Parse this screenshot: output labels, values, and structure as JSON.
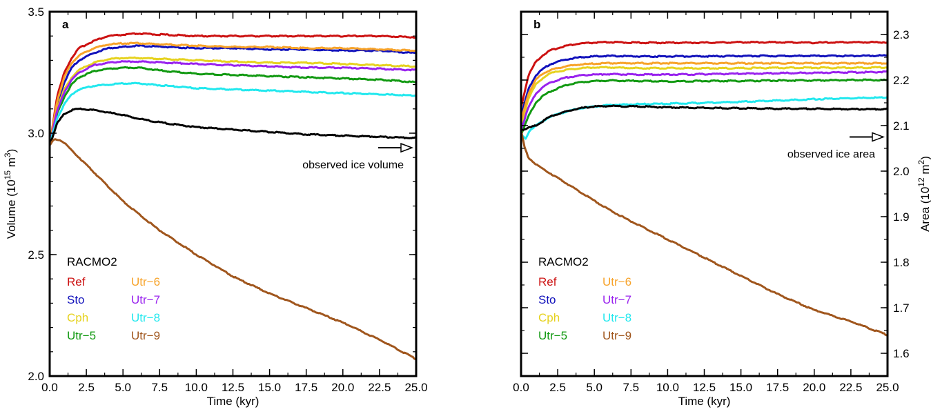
{
  "chart_data": [
    {
      "type": "line",
      "panel_letter": "a",
      "xlabel": "Time (kyr)",
      "ylabel_main": "Volume (10",
      "ylabel_exp": "15",
      "ylabel_unit": " m",
      "ylabel_unit_exp": "3",
      "ylabel_close": ")",
      "xlim": [
        0,
        25
      ],
      "ylim": [
        2.0,
        3.5
      ],
      "xticks": [
        "0.0",
        "2.5",
        "5.0",
        "7.5",
        "10.0",
        "12.5",
        "15.0",
        "17.5",
        "20.0",
        "22.5",
        "25.0"
      ],
      "yticks": [
        {
          "value": 2.0,
          "label": "2.0"
        },
        {
          "value": 2.5,
          "label": "2.5"
        },
        {
          "value": 3.0,
          "label": "3.0"
        },
        {
          "value": 3.5,
          "label": "3.5"
        }
      ],
      "y_axis_side": "left",
      "grid": false,
      "legend_title": "RACMO2",
      "annotation": {
        "text": "observed ice volume",
        "value": 2.94
      },
      "series": [
        {
          "name": "Ref",
          "color": "#cc1111",
          "x": [
            0,
            0.5,
            1,
            1.5,
            2,
            3,
            4,
            5,
            6,
            8,
            10,
            12.5,
            15,
            17.5,
            20,
            22.5,
            25
          ],
          "y": [
            2.95,
            3.15,
            3.25,
            3.31,
            3.35,
            3.38,
            3.4,
            3.405,
            3.41,
            3.405,
            3.4,
            3.4,
            3.4,
            3.4,
            3.4,
            3.4,
            3.395
          ]
        },
        {
          "name": "Sto",
          "color": "#1111bb",
          "x": [
            0,
            0.5,
            1,
            1.5,
            2,
            3,
            4,
            5,
            6,
            8,
            10,
            12.5,
            15,
            17.5,
            20,
            22.5,
            25
          ],
          "y": [
            2.95,
            3.12,
            3.21,
            3.27,
            3.3,
            3.33,
            3.35,
            3.355,
            3.36,
            3.355,
            3.35,
            3.35,
            3.345,
            3.345,
            3.34,
            3.34,
            3.33
          ]
        },
        {
          "name": "Cph",
          "color": "#e6d21f",
          "x": [
            0,
            0.5,
            1,
            1.5,
            2,
            3,
            4,
            5,
            6,
            8,
            10,
            12.5,
            15,
            17.5,
            20,
            22.5,
            25
          ],
          "y": [
            2.95,
            3.1,
            3.18,
            3.23,
            3.26,
            3.29,
            3.305,
            3.31,
            3.31,
            3.305,
            3.3,
            3.295,
            3.29,
            3.29,
            3.285,
            3.28,
            3.275
          ]
        },
        {
          "name": "Utr−5",
          "color": "#119911",
          "x": [
            0,
            0.5,
            1,
            1.5,
            2,
            3,
            4,
            5,
            6,
            8,
            10,
            12.5,
            15,
            17.5,
            20,
            22.5,
            25
          ],
          "y": [
            2.95,
            3.08,
            3.15,
            3.2,
            3.23,
            3.255,
            3.265,
            3.27,
            3.27,
            3.255,
            3.245,
            3.24,
            3.235,
            3.23,
            3.225,
            3.22,
            3.21
          ]
        },
        {
          "name": "Utr−6",
          "color": "#f7a32a",
          "x": [
            0,
            0.5,
            1,
            1.5,
            2,
            3,
            4,
            5,
            6,
            8,
            10,
            12.5,
            15,
            17.5,
            20,
            22.5,
            25
          ],
          "y": [
            2.95,
            3.13,
            3.23,
            3.29,
            3.32,
            3.35,
            3.365,
            3.37,
            3.37,
            3.365,
            3.36,
            3.355,
            3.355,
            3.35,
            3.35,
            3.345,
            3.34
          ]
        },
        {
          "name": "Utr−7",
          "color": "#9922ee",
          "x": [
            0,
            0.5,
            1,
            1.5,
            2,
            3,
            4,
            5,
            6,
            8,
            10,
            12.5,
            15,
            17.5,
            20,
            22.5,
            25
          ],
          "y": [
            2.95,
            3.09,
            3.17,
            3.22,
            3.25,
            3.28,
            3.29,
            3.295,
            3.295,
            3.29,
            3.285,
            3.28,
            3.275,
            3.27,
            3.27,
            3.265,
            3.26
          ]
        },
        {
          "name": "Utr−8",
          "color": "#22e8ee",
          "x": [
            0,
            0.5,
            1,
            1.5,
            2,
            3,
            4,
            5,
            6,
            8,
            10,
            12.5,
            15,
            17.5,
            20,
            22.5,
            25
          ],
          "y": [
            2.95,
            3.06,
            3.12,
            3.16,
            3.18,
            3.195,
            3.2,
            3.205,
            3.205,
            3.195,
            3.185,
            3.18,
            3.175,
            3.17,
            3.165,
            3.16,
            3.155
          ]
        },
        {
          "name": "",
          "color": "#000000",
          "x": [
            0,
            0.5,
            1,
            1.5,
            2,
            3,
            4,
            5,
            6,
            8,
            10,
            12.5,
            15,
            17.5,
            20,
            22.5,
            25
          ],
          "y": [
            2.95,
            3.04,
            3.08,
            3.095,
            3.1,
            3.095,
            3.085,
            3.075,
            3.06,
            3.04,
            3.025,
            3.015,
            3.005,
            2.995,
            2.99,
            2.985,
            2.98
          ]
        },
        {
          "name": "Utr−9",
          "color": "#a0561d",
          "x": [
            0,
            0.25,
            0.5,
            0.75,
            1,
            1.5,
            2,
            3,
            4,
            5,
            6,
            7.5,
            10,
            12.5,
            15,
            17.5,
            20,
            22.5,
            25
          ],
          "y": [
            2.95,
            2.97,
            2.975,
            2.97,
            2.96,
            2.93,
            2.9,
            2.84,
            2.78,
            2.72,
            2.67,
            2.6,
            2.5,
            2.41,
            2.34,
            2.28,
            2.22,
            2.15,
            2.07
          ]
        }
      ],
      "legend_order": [
        {
          "name": "Ref",
          "color": "#cc1111"
        },
        {
          "name": "Sto",
          "color": "#1111bb"
        },
        {
          "name": "Cph",
          "color": "#e6d21f"
        },
        {
          "name": "Utr−5",
          "color": "#119911"
        },
        {
          "name": "Utr−6",
          "color": "#f7a32a"
        },
        {
          "name": "Utr−7",
          "color": "#9922ee"
        },
        {
          "name": "Utr−8",
          "color": "#22e8ee"
        },
        {
          "name": "Utr−9",
          "color": "#a0561d"
        }
      ]
    },
    {
      "type": "line",
      "panel_letter": "b",
      "xlabel": "Time (kyr)",
      "ylabel_main": "Area (10",
      "ylabel_exp": "12",
      "ylabel_unit": " m",
      "ylabel_unit_exp": "2",
      "ylabel_close": ")",
      "xlim": [
        0,
        25
      ],
      "ylim": [
        1.55,
        2.35
      ],
      "xticks": [
        "0.0",
        "2.5",
        "5.0",
        "7.5",
        "10.0",
        "12.5",
        "15.0",
        "17.5",
        "20.0",
        "22.5",
        "25.0"
      ],
      "yticks": [
        {
          "value": 1.6,
          "label": "1.6"
        },
        {
          "value": 1.7,
          "label": "1.7"
        },
        {
          "value": 1.8,
          "label": "1.8"
        },
        {
          "value": 1.9,
          "label": "1.9"
        },
        {
          "value": 2.0,
          "label": "2.0"
        },
        {
          "value": 2.1,
          "label": "2.1"
        },
        {
          "value": 2.2,
          "label": "2.2"
        },
        {
          "value": 2.3,
          "label": "2.3"
        }
      ],
      "y_axis_side": "right",
      "grid": false,
      "legend_title": "RACMO2",
      "annotation": {
        "text": "observed ice area",
        "value": 2.075
      },
      "series": [
        {
          "name": "Ref",
          "color": "#cc1111",
          "x": [
            0,
            0.5,
            1,
            1.5,
            2,
            3,
            4,
            5,
            6,
            8,
            10,
            12.5,
            15,
            17.5,
            20,
            22.5,
            25
          ],
          "y": [
            2.14,
            2.21,
            2.24,
            2.255,
            2.265,
            2.275,
            2.28,
            2.282,
            2.283,
            2.282,
            2.282,
            2.282,
            2.283,
            2.283,
            2.282,
            2.283,
            2.283
          ]
        },
        {
          "name": "Sto",
          "color": "#1111bb",
          "x": [
            0,
            0.5,
            1,
            1.5,
            2,
            3,
            4,
            5,
            6,
            8,
            10,
            12.5,
            15,
            17.5,
            20,
            22.5,
            25
          ],
          "y": [
            2.12,
            2.18,
            2.21,
            2.225,
            2.235,
            2.245,
            2.25,
            2.252,
            2.253,
            2.252,
            2.252,
            2.252,
            2.253,
            2.253,
            2.253,
            2.253,
            2.254
          ]
        },
        {
          "name": "Cph",
          "color": "#e6d21f",
          "x": [
            0,
            0.5,
            1,
            1.5,
            2,
            3,
            4,
            5,
            6,
            8,
            10,
            12.5,
            15,
            17.5,
            20,
            22.5,
            25
          ],
          "y": [
            2.1,
            2.16,
            2.19,
            2.205,
            2.215,
            2.222,
            2.226,
            2.228,
            2.228,
            2.226,
            2.226,
            2.226,
            2.226,
            2.227,
            2.227,
            2.227,
            2.228
          ]
        },
        {
          "name": "Utr−5",
          "color": "#119911",
          "x": [
            0,
            0.5,
            1,
            1.5,
            2,
            3,
            4,
            5,
            6,
            8,
            10,
            12.5,
            15,
            17.5,
            20,
            22.5,
            25
          ],
          "y": [
            2.08,
            2.12,
            2.15,
            2.165,
            2.175,
            2.188,
            2.195,
            2.198,
            2.199,
            2.198,
            2.197,
            2.198,
            2.198,
            2.199,
            2.199,
            2.2,
            2.2
          ]
        },
        {
          "name": "Utr−6",
          "color": "#f7a32a",
          "x": [
            0,
            0.5,
            1,
            1.5,
            2,
            3,
            4,
            5,
            6,
            8,
            10,
            12.5,
            15,
            17.5,
            20,
            22.5,
            25
          ],
          "y": [
            2.11,
            2.17,
            2.2,
            2.215,
            2.222,
            2.23,
            2.234,
            2.236,
            2.237,
            2.237,
            2.237,
            2.237,
            2.237,
            2.237,
            2.237,
            2.237,
            2.237
          ]
        },
        {
          "name": "Utr−7",
          "color": "#9922ee",
          "x": [
            0,
            0.5,
            1,
            1.5,
            2,
            3,
            4,
            5,
            6,
            8,
            10,
            12.5,
            15,
            17.5,
            20,
            22.5,
            25
          ],
          "y": [
            2.09,
            2.14,
            2.17,
            2.185,
            2.195,
            2.205,
            2.21,
            2.212,
            2.213,
            2.212,
            2.212,
            2.213,
            2.214,
            2.215,
            2.216,
            2.217,
            2.218
          ]
        },
        {
          "name": "Utr−8",
          "color": "#22e8ee",
          "x": [
            0,
            0.3,
            0.6,
            1,
            1.5,
            2,
            3,
            4,
            5,
            6,
            8,
            10,
            12.5,
            15,
            17.5,
            20,
            22.5,
            25
          ],
          "y": [
            2.08,
            2.07,
            2.09,
            2.1,
            2.11,
            2.12,
            2.13,
            2.138,
            2.142,
            2.145,
            2.147,
            2.148,
            2.15,
            2.152,
            2.155,
            2.158,
            2.16,
            2.162
          ]
        },
        {
          "name": "",
          "color": "#000000",
          "x": [
            0,
            0.5,
            1,
            1.5,
            2,
            3,
            4,
            5,
            6,
            8,
            10,
            12.5,
            15,
            17.5,
            20,
            22.5,
            25
          ],
          "y": [
            2.09,
            2.095,
            2.1,
            2.11,
            2.12,
            2.13,
            2.138,
            2.142,
            2.143,
            2.142,
            2.14,
            2.139,
            2.138,
            2.137,
            2.137,
            2.136,
            2.136
          ]
        },
        {
          "name": "Utr−9",
          "color": "#a0561d",
          "x": [
            0,
            0.25,
            0.5,
            1,
            1.5,
            2,
            3,
            4,
            5,
            6,
            7.5,
            10,
            12.5,
            15,
            17.5,
            20,
            22.5,
            25
          ],
          "y": [
            2.09,
            2.05,
            2.03,
            2.015,
            2.005,
            1.995,
            1.975,
            1.955,
            1.935,
            1.915,
            1.89,
            1.85,
            1.81,
            1.77,
            1.73,
            1.695,
            1.67,
            1.64
          ]
        }
      ],
      "legend_order": [
        {
          "name": "Ref",
          "color": "#cc1111"
        },
        {
          "name": "Sto",
          "color": "#1111bb"
        },
        {
          "name": "Cph",
          "color": "#e6d21f"
        },
        {
          "name": "Utr−5",
          "color": "#119911"
        },
        {
          "name": "Utr−6",
          "color": "#f7a32a"
        },
        {
          "name": "Utr−7",
          "color": "#9922ee"
        },
        {
          "name": "Utr−8",
          "color": "#22e8ee"
        },
        {
          "name": "Utr−9",
          "color": "#a0561d"
        }
      ]
    }
  ]
}
